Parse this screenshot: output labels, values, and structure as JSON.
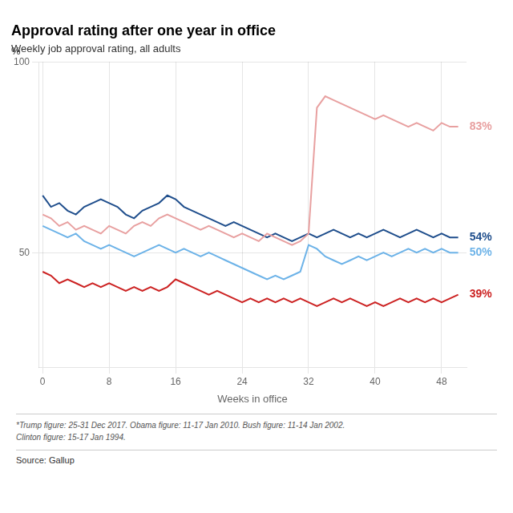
{
  "chart_data": {
    "type": "line",
    "title": "Approval rating after one year in office",
    "subtitle": "Weekly job approval rating, all adults",
    "ylabel": "%",
    "xlabel": "Weeks in office",
    "footnote": "*Trump figure: 25-31 Dec 2017. Obama figure: 11-17 Jan 2010. Bush figure: 11-14 Jan 2002.\nClinton figure: 15-17 Jan 1994.",
    "source": "Source: Gallup",
    "x": [
      0,
      1,
      2,
      3,
      4,
      5,
      6,
      7,
      8,
      9,
      10,
      11,
      12,
      13,
      14,
      15,
      16,
      17,
      18,
      19,
      20,
      21,
      22,
      23,
      24,
      25,
      26,
      27,
      28,
      29,
      30,
      31,
      32,
      33,
      34,
      35,
      36,
      37,
      38,
      39,
      40,
      41,
      42,
      43,
      44,
      45,
      46,
      47,
      48,
      49,
      50
    ],
    "series": [
      {
        "color": "#e8a0a0",
        "values": [
          60,
          59,
          57,
          58,
          56,
          57,
          56,
          55,
          57,
          56,
          55,
          57,
          58,
          57,
          59,
          60,
          59,
          58,
          57,
          56,
          57,
          56,
          55,
          54,
          55,
          54,
          53,
          55,
          54,
          53,
          52,
          53,
          55,
          88,
          91,
          90,
          89,
          88,
          87,
          86,
          85,
          86,
          85,
          84,
          83,
          84,
          83,
          82,
          84,
          83,
          83
        ]
      },
      {
        "color": "#1f4e8c",
        "values": [
          65,
          62,
          63,
          61,
          60,
          62,
          63,
          64,
          63,
          62,
          60,
          59,
          61,
          62,
          63,
          65,
          64,
          62,
          61,
          60,
          59,
          58,
          57,
          58,
          57,
          56,
          55,
          54,
          55,
          54,
          53,
          54,
          55,
          54,
          55,
          56,
          55,
          54,
          55,
          54,
          55,
          56,
          55,
          54,
          55,
          56,
          55,
          54,
          55,
          54,
          54
        ]
      },
      {
        "color": "#6db3e8",
        "values": [
          57,
          56,
          55,
          54,
          55,
          53,
          52,
          51,
          52,
          51,
          50,
          49,
          50,
          51,
          52,
          51,
          50,
          51,
          50,
          49,
          50,
          49,
          48,
          47,
          46,
          45,
          44,
          43,
          44,
          43,
          44,
          45,
          52,
          51,
          49,
          48,
          47,
          48,
          49,
          48,
          49,
          50,
          49,
          50,
          51,
          50,
          51,
          50,
          51,
          50,
          50
        ]
      },
      {
        "color": "#cc2222",
        "values": [
          45,
          44,
          42,
          43,
          42,
          41,
          42,
          41,
          42,
          41,
          40,
          41,
          40,
          41,
          40,
          41,
          43,
          42,
          41,
          40,
          39,
          40,
          39,
          38,
          37,
          38,
          37,
          38,
          37,
          38,
          37,
          38,
          37,
          36,
          37,
          38,
          37,
          38,
          37,
          36,
          37,
          36,
          37,
          38,
          37,
          38,
          37,
          38,
          37,
          38,
          39
        ]
      }
    ],
    "annotations": [
      {
        "x": 50,
        "y": 83,
        "text": "83%",
        "color": "#e8a0a0"
      },
      {
        "x": 50,
        "y": 54,
        "text": "54%",
        "color": "#1f4e8c"
      },
      {
        "x": 50,
        "y": 50,
        "text": "50%",
        "color": "#6db3e8"
      },
      {
        "x": 50,
        "y": 39,
        "text": "39%",
        "color": "#cc2222"
      }
    ],
    "xlim": [
      -0.5,
      51
    ],
    "xticks": [
      0,
      8,
      16,
      24,
      32,
      40,
      48
    ],
    "ylim": [
      20,
      100
    ],
    "yticks": [
      50,
      100
    ],
    "grid": true
  }
}
